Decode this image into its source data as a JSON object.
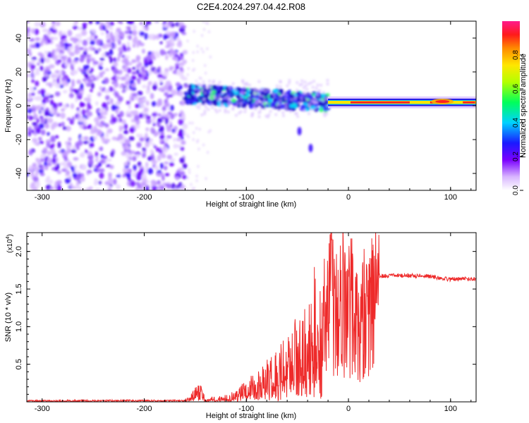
{
  "colors": {
    "snr_line": "#ee2a2a",
    "spectrogram_low": "#c9a6ff",
    "spectrogram_mid": "#5a00ff",
    "spectrogram_high": "#ff1a1a",
    "axis": "#000000"
  },
  "chart_data": [
    {
      "type": "heatmap",
      "title": "C2E4.2024.297.04.42.R08",
      "xlabel": "Height of straight line (km)",
      "ylabel": "Frequency (Hz)",
      "xlim": [
        -315,
        125
      ],
      "ylim": [
        -50,
        50
      ],
      "x_ticks": [
        -300,
        -200,
        -100,
        0,
        100
      ],
      "x_tick_labels": [
        "-300",
        "-200",
        "-100",
        "0",
        "100"
      ],
      "y_ticks": [
        -40,
        -20,
        0,
        20,
        40
      ],
      "y_tick_labels": [
        "-40",
        "-20",
        "0",
        "20",
        "40"
      ],
      "colorbar": {
        "label": "Normalized spectral amplitude",
        "range": [
          0,
          1
        ],
        "ticks": [
          0.0,
          0.2,
          0.4,
          0.6,
          0.8
        ],
        "tick_labels": [
          "0.0",
          "0.2",
          "0.4",
          "0.6",
          "0.8"
        ],
        "colormap": "rainbow (white-violet-blue-cyan-green-yellow-orange-red-magenta)"
      },
      "regions": [
        {
          "x_range": [
            -315,
            -160
          ],
          "freq_range": [
            -50,
            50
          ],
          "amplitude": "noise, low to moderate"
        },
        {
          "x_range": [
            -160,
            -20
          ],
          "center_freq_start": 7,
          "center_freq_end": 2,
          "bandwidth_hz": 8,
          "amplitude": "moderate to high"
        },
        {
          "x_range": [
            -20,
            125
          ],
          "center_freq": 2,
          "bandwidth_hz": 3,
          "amplitude": "high (peak ~0.95)"
        }
      ],
      "features": [
        {
          "x": -48,
          "freq": -15,
          "amplitude": "moderate"
        },
        {
          "x": -37,
          "freq": -25,
          "amplitude": "low"
        }
      ]
    },
    {
      "type": "line",
      "xlabel": "Height of straight line (km)",
      "ylabel": "SNR (10 * v/v)",
      "y_scale_label": "(x10",
      "y_scale_exponent": "4",
      "xlim": [
        -315,
        125
      ],
      "ylim": [
        0,
        22500
      ],
      "grid": false,
      "x_ticks": [
        -300,
        -200,
        -100,
        0,
        100
      ],
      "x_tick_labels": [
        "-300",
        "-200",
        "-100",
        "0",
        "100"
      ],
      "y_ticks": [
        5000,
        10000,
        15000,
        20000
      ],
      "y_tick_labels": [
        "0.5",
        "1.0",
        "1.5",
        "2.0"
      ],
      "series": [
        {
          "x": [
            -315,
            -250,
            -160,
            -145,
            -140,
            -120,
            -110,
            -100,
            -90,
            -80,
            -70,
            -60,
            -50,
            -40,
            -35,
            -30,
            -25,
            -20,
            -17,
            -15,
            -10,
            -5,
            0,
            5,
            10,
            15,
            20,
            25,
            30,
            40,
            50,
            60,
            70,
            80,
            90,
            100,
            110,
            125
          ],
          "values": [
            100,
            150,
            150,
            1500,
            300,
            500,
            900,
            1500,
            2200,
            3000,
            3800,
            5000,
            6500,
            8000,
            10500,
            8000,
            9500,
            13000,
            22000,
            16000,
            13000,
            16500,
            14500,
            15500,
            10000,
            14000,
            15500,
            16300,
            16700,
            16800,
            16800,
            16800,
            16700,
            16700,
            16400,
            16300,
            16400,
            16300
          ],
          "color": "#ee2a2a"
        }
      ]
    }
  ]
}
